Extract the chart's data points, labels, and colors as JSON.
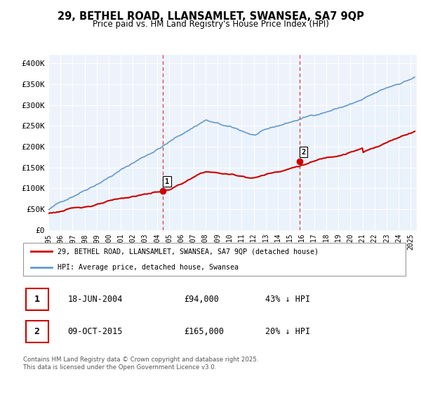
{
  "title": "29, BETHEL ROAD, LLANSAMLET, SWANSEA, SA7 9QP",
  "subtitle": "Price paid vs. HM Land Registry's House Price Index (HPI)",
  "hpi_color": "#6699cc",
  "price_color": "#cc0000",
  "dashed_color": "#cc0000",
  "bg_fill_color": "#ddeeff",
  "ylim": [
    0,
    420000
  ],
  "yticks": [
    0,
    50000,
    100000,
    150000,
    200000,
    250000,
    300000,
    350000,
    400000
  ],
  "ytick_labels": [
    "£0",
    "£50K",
    "£100K",
    "£150K",
    "£200K",
    "£250K",
    "£300K",
    "£350K",
    "£400K"
  ],
  "xlim_start": 1995.0,
  "xlim_end": 2025.5,
  "sale1_x": 2004.46,
  "sale1_y": 94000,
  "sale2_x": 2015.77,
  "sale2_y": 165000,
  "legend_line1": "29, BETHEL ROAD, LLANSAMLET, SWANSEA, SA7 9QP (detached house)",
  "legend_line2": "HPI: Average price, detached house, Swansea",
  "note1_num": "1",
  "note1_date": "18-JUN-2004",
  "note1_price": "£94,000",
  "note1_hpi": "43% ↓ HPI",
  "note2_num": "2",
  "note2_date": "09-OCT-2015",
  "note2_price": "£165,000",
  "note2_hpi": "20% ↓ HPI",
  "footer": "Contains HM Land Registry data © Crown copyright and database right 2025.\nThis data is licensed under the Open Government Licence v3.0."
}
